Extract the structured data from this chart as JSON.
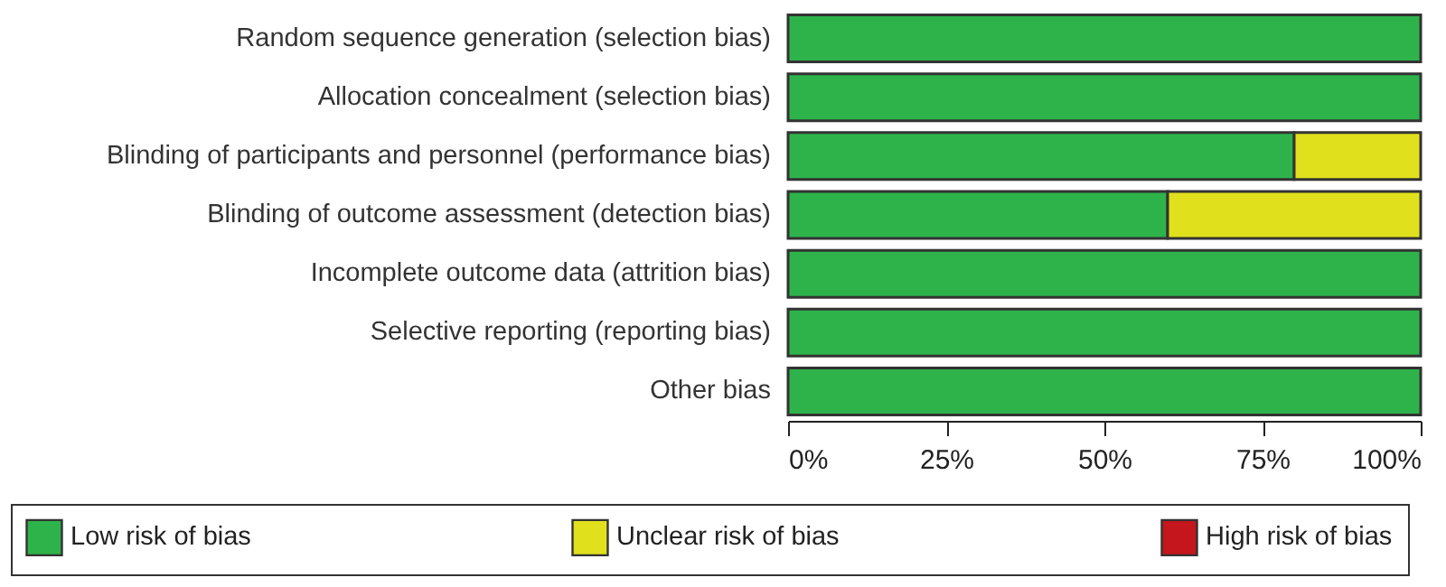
{
  "chart_data": {
    "type": "bar",
    "orientation": "horizontal",
    "stacked": true,
    "categories": [
      "Random sequence generation (selection bias)",
      "Allocation concealment (selection bias)",
      "Blinding of participants and personnel (performance bias)",
      "Blinding of outcome assessment (detection bias)",
      "Incomplete outcome data (attrition bias)",
      "Selective reporting (reporting bias)",
      "Other bias"
    ],
    "series": [
      {
        "name": "Low risk of bias",
        "color": "#2db34a",
        "values": [
          100,
          100,
          80,
          60,
          100,
          100,
          100
        ]
      },
      {
        "name": "Unclear risk of bias",
        "color": "#e0e01c",
        "values": [
          0,
          0,
          20,
          40,
          0,
          0,
          0
        ]
      },
      {
        "name": "High risk of bias",
        "color": "#c4161c",
        "values": [
          0,
          0,
          0,
          0,
          0,
          0,
          0
        ]
      }
    ],
    "xlim": [
      0,
      100
    ],
    "xticks": [
      {
        "value": 0,
        "label": "0%"
      },
      {
        "value": 25,
        "label": "25%"
      },
      {
        "value": 50,
        "label": "50%"
      },
      {
        "value": 75,
        "label": "75%"
      },
      {
        "value": 100,
        "label": "100%"
      }
    ],
    "grid": false,
    "legend": "bottom"
  }
}
